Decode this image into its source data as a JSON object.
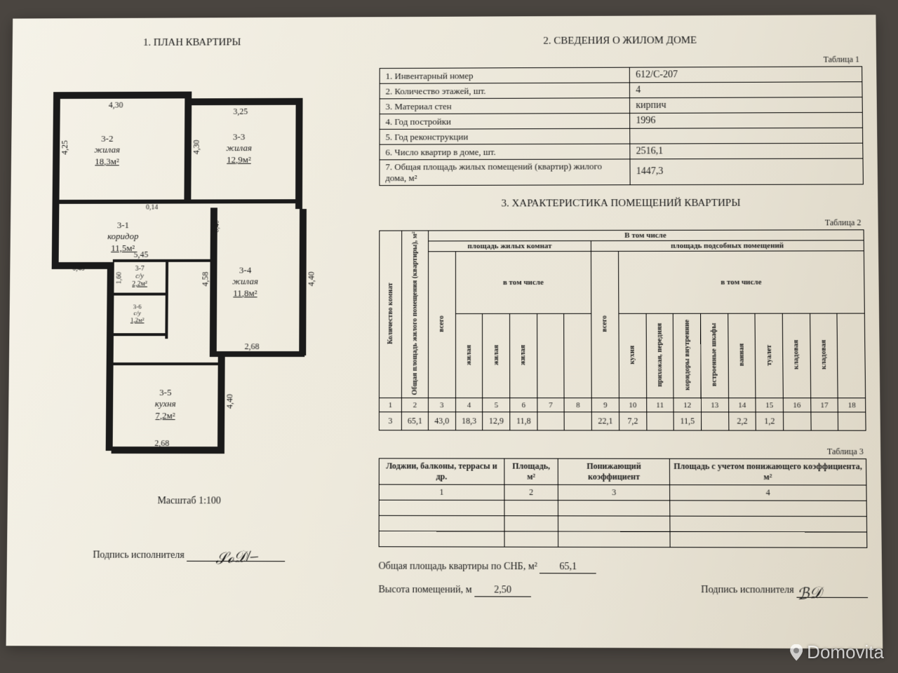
{
  "colors": {
    "ink": "#1a1a1a",
    "paper_gradient": [
      "#f5f2e8",
      "#eeeadd",
      "#e8e3d5",
      "#dcd5c4"
    ],
    "background": "#4a4540"
  },
  "watermark": "Domovita",
  "left": {
    "title": "1. ПЛАН КВАРТИРЫ",
    "scale": "Масштаб 1:100",
    "signature_label": "Подпись исполнителя",
    "rooms": [
      {
        "id": "3-1",
        "name": "коридор",
        "area": "11,5м²"
      },
      {
        "id": "3-2",
        "name": "жилая",
        "area": "18,3м²"
      },
      {
        "id": "3-3",
        "name": "жилая",
        "area": "12,9м²"
      },
      {
        "id": "3-4",
        "name": "жилая",
        "area": "11,8м²"
      },
      {
        "id": "3-5",
        "name": "кухня",
        "area": "7,2м²"
      },
      {
        "id": "3-6",
        "name": "с/у",
        "area": "1,2м²"
      },
      {
        "id": "3-7",
        "name": "с/у",
        "area": "2,2м²"
      }
    ],
    "dimensions": {
      "top_left": "4,30",
      "top_right": "3,25",
      "left_side": "4,25",
      "mid_vert": "4,30",
      "mid_small": "0,14",
      "corridor_len": "5,45",
      "corridor_small": "0,40",
      "mid_vert2": "4,58",
      "mid_vert2b": "0,40",
      "room4_h": "4,40",
      "room4_w": "2,68",
      "kitchen_h": "4,40",
      "kitchen_w": "2,68",
      "wc_h": "1,60"
    }
  },
  "right": {
    "section2_title": "2. СВЕДЕНИЯ О ЖИЛОМ ДОМЕ",
    "table1_caption": "Таблица 1",
    "info_rows": [
      {
        "label": "1. Инвентарный номер",
        "value": "612/С-207"
      },
      {
        "label": "2. Количество этажей, шт.",
        "value": "4"
      },
      {
        "label": "3. Материал стен",
        "value": "кирпич"
      },
      {
        "label": "4. Год постройки",
        "value": "1996"
      },
      {
        "label": "5. Год реконструкции",
        "value": ""
      },
      {
        "label": "6. Число квартир в доме, шт.",
        "value": "2516,1"
      },
      {
        "label": "7. Общая площадь жилых помещений (квартир) жилого дома, м²",
        "value": "1447,3"
      }
    ],
    "section3_title": "3. ХАРАКТЕРИСТИКА ПОМЕЩЕНИЙ КВАРТИРЫ",
    "table2_caption": "Таблица 2",
    "char_headers": {
      "group_top": "В том числе",
      "group_living": "площадь жилых комнат",
      "group_aux": "площадь подсобных помещений",
      "sub_incl": "в том числе",
      "col1": "Количество комнат",
      "col2": "Общая площадь жилого помещения (квартиры), м²",
      "col3": "всего",
      "cols_living": [
        "жилая",
        "жилая",
        "жилая"
      ],
      "col_aux_total": "всего",
      "cols_aux": [
        "кухня",
        "прихожая, передняя",
        "коридоры внутренние",
        "встроенные шкафы",
        "ванная",
        "туалет",
        "кладовая",
        "кладовая"
      ]
    },
    "char_numbers": [
      "1",
      "2",
      "3",
      "4",
      "5",
      "6",
      "7",
      "8",
      "9",
      "10",
      "11",
      "12",
      "13",
      "14",
      "15",
      "16",
      "17",
      "18"
    ],
    "char_data": [
      "3",
      "65,1",
      "43,0",
      "18,3",
      "12,9",
      "11,8",
      "",
      "",
      "22,1",
      "7,2",
      "",
      "11,5",
      "",
      "2,2",
      "1,2",
      "",
      "",
      ""
    ],
    "table3_caption": "Таблица 3",
    "t3_headers": [
      "Лоджии, балконы, террасы и др.",
      "Площадь, м²",
      "Понижающий коэффициент",
      "Площадь с учетом понижающего коэффициента, м²"
    ],
    "t3_numbers": [
      "1",
      "2",
      "3",
      "4"
    ],
    "facts": {
      "total_area_label": "Общая площадь квартиры по СНБ, м²",
      "total_area_value": "65,1",
      "height_label": "Высота помещений, м",
      "height_value": "2,50",
      "signature_label": "Подпись исполнителя"
    }
  }
}
